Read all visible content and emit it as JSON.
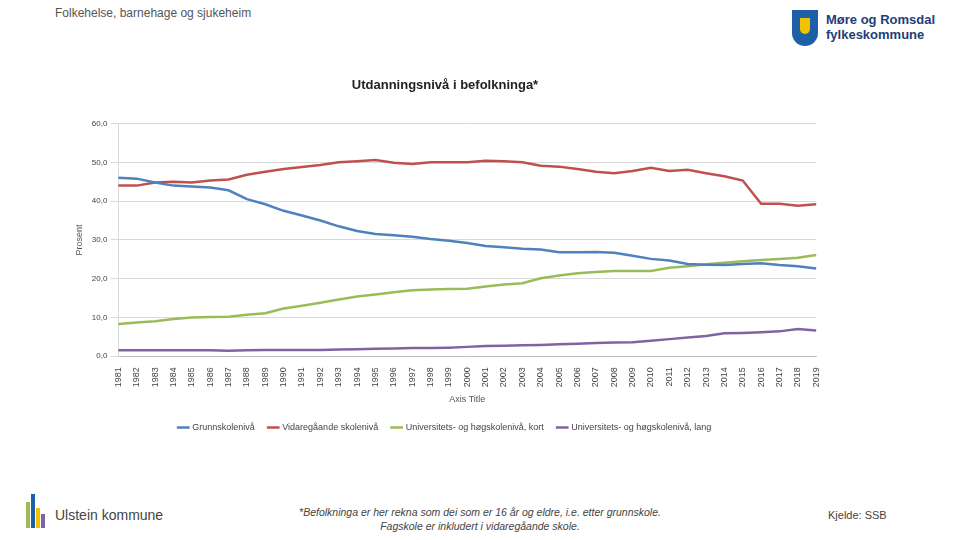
{
  "header": "Folkehelse, barnehage og sjukeheim",
  "logo": [
    "Møre og Romsdal",
    "fylkeskommune"
  ],
  "footer": "Ulstein kommune",
  "footnote": [
    "*Befolkninga er her rekna som dei som er 16 år og eldre, i.e. etter grunnskole.",
    "Fagskole er inkludert i vidaregåande skole."
  ],
  "source": "Kjelde: SSB",
  "chart_data": {
    "type": "line",
    "title": "Utdanningsnivå i befolkninga*",
    "x_label": "Axis Title",
    "y_label": "Prosent",
    "categories": [
      "1981",
      "1982",
      "1983",
      "1984",
      "1985",
      "1986",
      "1987",
      "1988",
      "1989",
      "1990",
      "1991",
      "1992",
      "1993",
      "1994",
      "1995",
      "1996",
      "1997",
      "1998",
      "1999",
      "2000",
      "2001",
      "2002",
      "2003",
      "2004",
      "2005",
      "2006",
      "2007",
      "2008",
      "2009",
      "2010",
      "2011",
      "2012",
      "2013",
      "2014",
      "2015",
      "2016",
      "2017",
      "2018",
      "2019"
    ],
    "series": [
      {
        "name": "Grunnskolenivå",
        "color": "#4f81bd",
        "values": [
          46,
          45.8,
          44.8,
          44,
          43.8,
          43.5,
          42.8,
          40.5,
          39.2,
          37.5,
          36.3,
          35,
          33.5,
          32.3,
          31.5,
          31.2,
          30.8,
          30.2,
          29.8,
          29.2,
          28.4,
          28.1,
          27.7,
          27.5,
          26.8,
          26.8,
          26.9,
          26.7,
          25.9,
          25.1,
          24.7,
          23.8,
          23.6,
          23.5,
          23.8,
          24,
          23.5,
          23.2,
          22.6
        ]
      },
      {
        "name": "Vidaregåande skolenivå",
        "color": "#c0504d",
        "values": [
          44,
          44,
          44.8,
          45,
          44.8,
          45.3,
          45.6,
          46.8,
          47.6,
          48.3,
          48.8,
          49.3,
          50,
          50.3,
          50.6,
          49.9,
          49.6,
          50,
          50,
          50,
          50.4,
          50.3,
          50,
          49.1,
          48.9,
          48.3,
          47.6,
          47.2,
          47.8,
          48.6,
          47.8,
          48.1,
          47.2,
          46.4,
          45.3,
          39.3,
          39.3,
          38.8,
          39.2
        ]
      },
      {
        "name": "Universitets- og høgskolenivå, kort",
        "color": "#9bbb59",
        "values": [
          8.3,
          8.7,
          9,
          9.6,
          10,
          10.1,
          10.2,
          10.7,
          11.1,
          12.3,
          13,
          13.8,
          14.6,
          15.4,
          15.9,
          16.5,
          17,
          17.2,
          17.3,
          17.4,
          18,
          18.5,
          18.8,
          20.1,
          20.8,
          21.4,
          21.7,
          22,
          22,
          22,
          22.8,
          23.2,
          23.7,
          24.1,
          24.5,
          24.8,
          25.1,
          25.4,
          26.1
        ]
      },
      {
        "name": "Universitets- og høgskolenivå, lang",
        "color": "#8064a2",
        "values": [
          1.5,
          1.5,
          1.5,
          1.5,
          1.5,
          1.5,
          1.4,
          1.5,
          1.6,
          1.6,
          1.6,
          1.6,
          1.7,
          1.8,
          1.9,
          2,
          2.1,
          2.1,
          2.2,
          2.4,
          2.6,
          2.7,
          2.8,
          2.9,
          3.1,
          3.2,
          3.4,
          3.5,
          3.6,
          4,
          4.4,
          4.8,
          5.2,
          5.9,
          6,
          6.2,
          6.4,
          7,
          6.6
        ]
      }
    ],
    "ylim": [
      0,
      60
    ],
    "yticks": [
      {
        "value": 0,
        "label": "0,0"
      },
      {
        "value": 10,
        "label": "10,0"
      },
      {
        "value": 20,
        "label": "20,0"
      },
      {
        "value": 30,
        "label": "30,0"
      },
      {
        "value": 40,
        "label": "40,0"
      },
      {
        "value": 50,
        "label": "50,0"
      },
      {
        "value": 60,
        "label": "60,0"
      }
    ],
    "grid": true,
    "legend": "bottom"
  }
}
